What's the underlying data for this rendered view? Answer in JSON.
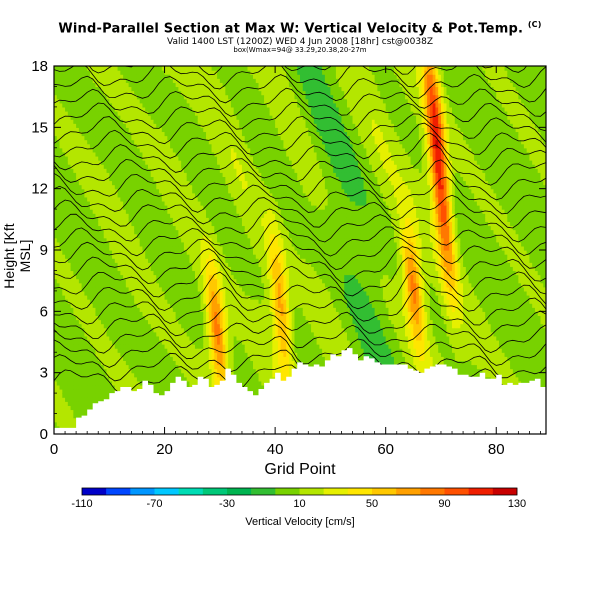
{
  "chart_data": {
    "type": "heatmap",
    "title": "Wind-Parallel Section at Max W: Vertical Velocity & Pot.Temp.",
    "title_corner": "(C)",
    "subtitle_line1": "Valid 1400 LST (1200Z) WED 4 Jun 2008 [18hr] cst@0038Z",
    "subtitle_line2": "box(Wmax=94@ 33.29,20.38,20-27m",
    "xlabel": "Grid Point",
    "ylabel": "Height [Kft MSL]",
    "xlim": [
      0,
      89
    ],
    "ylim": [
      0,
      18
    ],
    "x_ticks": [
      "0",
      "20",
      "40",
      "60",
      "80"
    ],
    "y_ticks": [
      "0",
      "3",
      "6",
      "9",
      "12",
      "15",
      "18"
    ],
    "colorbar": {
      "label": "Vertical Velocity [cm/s]",
      "min": -110,
      "max": 130,
      "tick_labels": [
        "-110",
        "-70",
        "-30",
        "10",
        "50",
        "90",
        "130"
      ],
      "colors": [
        "#0000c8",
        "#0046ff",
        "#0096ff",
        "#00c8ff",
        "#00dcb4",
        "#00c878",
        "#00b450",
        "#32be32",
        "#78d200",
        "#b4e600",
        "#e6f000",
        "#ffe600",
        "#ffc800",
        "#ffa000",
        "#ff7800",
        "#ff5000",
        "#f01e00",
        "#c80000"
      ]
    },
    "updraft_maxima": [
      {
        "x": 29.5,
        "vel": 85,
        "from_h": 2.5,
        "to_h": 7.5
      },
      {
        "x": 41,
        "vel": 70,
        "from_h": 3.5,
        "to_h": 9
      },
      {
        "x": 65,
        "vel": 80,
        "from_h": 5,
        "to_h": 9.5
      },
      {
        "x": 69.5,
        "vel": 120,
        "from_h": 9,
        "to_h": 18
      }
    ],
    "isentrope_count": 24,
    "terrain_heights": [
      0.3,
      0.3,
      0.3,
      0.3,
      0.8,
      0.9,
      1.2,
      1.5,
      1.6,
      1.7,
      2.0,
      2.1,
      2.3,
      2.3,
      2.1,
      2.2,
      2.6,
      2.4,
      2.0,
      1.9,
      2.1,
      2.5,
      2.8,
      2.6,
      2.3,
      2.4,
      2.8,
      2.7,
      2.3,
      2.4,
      2.6,
      3.2,
      2.9,
      2.5,
      2.3,
      2.1,
      1.9,
      2.2,
      2.5,
      2.7,
      3.0,
      2.6,
      2.8,
      3.2,
      3.5,
      3.4,
      3.3,
      3.4,
      3.3,
      3.6,
      3.9,
      3.8,
      4.1,
      4.2,
      3.9,
      3.6,
      3.8,
      3.7,
      3.5,
      3.4,
      3.4,
      3.4,
      3.4,
      3.4,
      3.2,
      3.1,
      3.0,
      3.2,
      3.3,
      3.4,
      3.4,
      3.3,
      3.2,
      2.9,
      2.9,
      2.8,
      2.8,
      3.0,
      2.7,
      2.7,
      2.9,
      2.4,
      2.5,
      2.4,
      2.5,
      2.5,
      2.6,
      2.7,
      2.3,
      2.3
    ]
  }
}
